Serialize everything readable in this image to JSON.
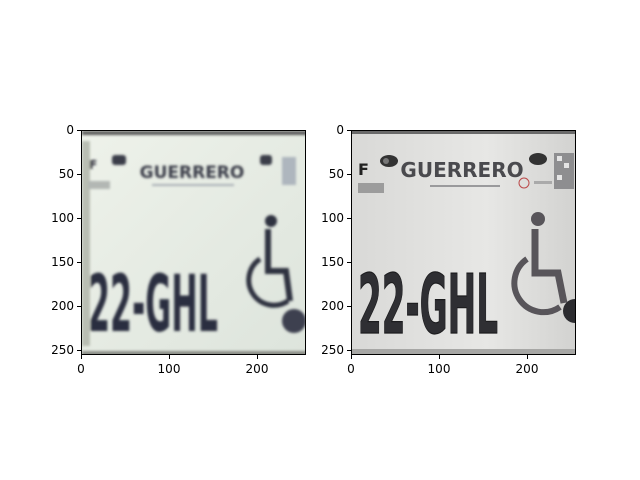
{
  "panels": [
    {
      "name": "blurry",
      "plate": {
        "state": "GUERRERO",
        "number": "22-GHL",
        "corner_letter": "F"
      },
      "x_ticks": [
        "0",
        "100",
        "200"
      ],
      "y_ticks": [
        "0",
        "50",
        "100",
        "150",
        "200",
        "250"
      ],
      "x_range": [
        0,
        256
      ],
      "y_range": [
        0,
        256
      ]
    },
    {
      "name": "sharp",
      "plate": {
        "state": "GUERRERO",
        "number": "22-GHL",
        "corner_letter": "F"
      },
      "x_ticks": [
        "0",
        "100",
        "200"
      ],
      "y_ticks": [
        "0",
        "50",
        "100",
        "150",
        "200",
        "250"
      ],
      "x_range": [
        0,
        256
      ],
      "y_range": [
        0,
        256
      ]
    }
  ],
  "colors": {
    "plate_left": "#e4e9e3",
    "plate_right": "#e1e1df",
    "ink": "#2c2e3a"
  }
}
